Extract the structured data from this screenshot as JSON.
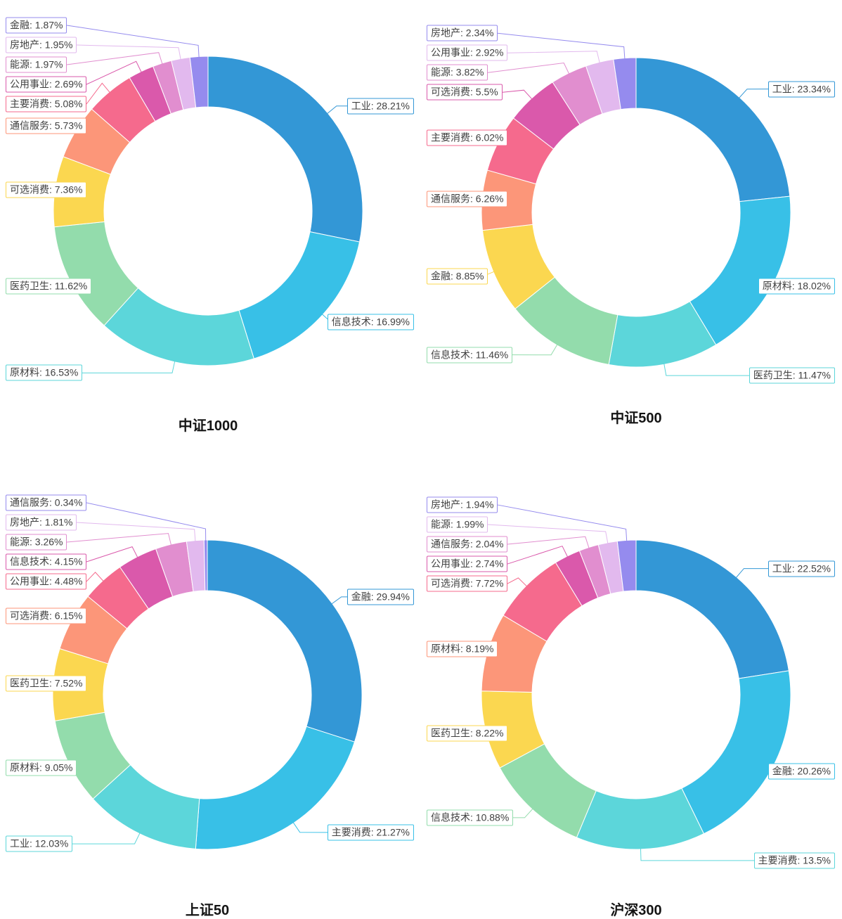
{
  "page": {
    "background": "#ffffff"
  },
  "palette": [
    "#3397d6",
    "#38c0e7",
    "#5cd6da",
    "#93dcac",
    "#fbd750",
    "#fc9679",
    "#f56a8d",
    "#da59ab",
    "#e18ecf",
    "#e2b9ee",
    "#958bee"
  ],
  "label_text_color": "#404040",
  "chart_data": [
    {
      "type": "pie",
      "donut": true,
      "title": "中证1000",
      "label_format": "{name}: {value}%",
      "legend": "none",
      "order": "descending-clockwise-from-top",
      "items": [
        {
          "name": "工业",
          "value": 28.21
        },
        {
          "name": "信息技术",
          "value": 16.99
        },
        {
          "name": "原材料",
          "value": 16.53
        },
        {
          "name": "医药卫生",
          "value": 11.62
        },
        {
          "name": "可选消费",
          "value": 7.36
        },
        {
          "name": "通信服务",
          "value": 5.73
        },
        {
          "name": "主要消费",
          "value": 5.08
        },
        {
          "name": "公用事业",
          "value": 2.69
        },
        {
          "name": "能源",
          "value": 1.97
        },
        {
          "name": "房地产",
          "value": 1.95
        },
        {
          "name": "金融",
          "value": 1.87
        }
      ]
    },
    {
      "type": "pie",
      "donut": true,
      "title": "中证500",
      "label_format": "{name}: {value}%",
      "legend": "none",
      "order": "descending-clockwise-from-top",
      "items": [
        {
          "name": "工业",
          "value": 23.34
        },
        {
          "name": "原材料",
          "value": 18.02
        },
        {
          "name": "医药卫生",
          "value": 11.47
        },
        {
          "name": "信息技术",
          "value": 11.46
        },
        {
          "name": "金融",
          "value": 8.85
        },
        {
          "name": "通信服务",
          "value": 6.26
        },
        {
          "name": "主要消费",
          "value": 6.02
        },
        {
          "name": "可选消费",
          "value": 5.5
        },
        {
          "name": "能源",
          "value": 3.82
        },
        {
          "name": "公用事业",
          "value": 2.92
        },
        {
          "name": "房地产",
          "value": 2.34
        }
      ]
    },
    {
      "type": "pie",
      "donut": true,
      "title": "上证50",
      "label_format": "{name}: {value}%",
      "legend": "none",
      "order": "descending-clockwise-from-top",
      "items": [
        {
          "name": "金融",
          "value": 29.94
        },
        {
          "name": "主要消费",
          "value": 21.27
        },
        {
          "name": "工业",
          "value": 12.03
        },
        {
          "name": "原材料",
          "value": 9.05
        },
        {
          "name": "医药卫生",
          "value": 7.52
        },
        {
          "name": "可选消费",
          "value": 6.15
        },
        {
          "name": "公用事业",
          "value": 4.48
        },
        {
          "name": "信息技术",
          "value": 4.15
        },
        {
          "name": "能源",
          "value": 3.26
        },
        {
          "name": "房地产",
          "value": 1.81
        },
        {
          "name": "通信服务",
          "value": 0.34
        }
      ]
    },
    {
      "type": "pie",
      "donut": true,
      "title": "沪深300",
      "label_format": "{name}: {value}%",
      "legend": "none",
      "order": "descending-clockwise-from-top",
      "items": [
        {
          "name": "工业",
          "value": 22.52
        },
        {
          "name": "金融",
          "value": 20.26
        },
        {
          "name": "主要消费",
          "value": 13.5
        },
        {
          "name": "信息技术",
          "value": 10.88
        },
        {
          "name": "医药卫生",
          "value": 8.22
        },
        {
          "name": "原材料",
          "value": 8.19
        },
        {
          "name": "可选消费",
          "value": 7.72
        },
        {
          "name": "公用事业",
          "value": 2.74
        },
        {
          "name": "通信服务",
          "value": 2.04
        },
        {
          "name": "能源",
          "value": 1.99
        },
        {
          "name": "房地产",
          "value": 1.94
        }
      ]
    }
  ]
}
